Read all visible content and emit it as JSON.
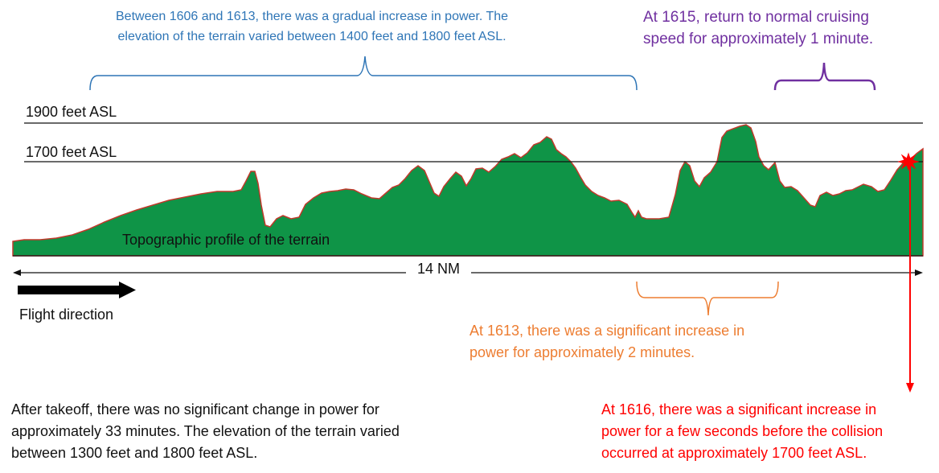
{
  "reference_lines": {
    "upper": {
      "label": "1900 feet ASL"
    },
    "lower": {
      "label": "1700 feet ASL"
    }
  },
  "terrain": {
    "label": "Topographic profile of the terrain",
    "fill_color": "#0f9447",
    "outline_color": "#c0392b"
  },
  "distance": {
    "label": "14 NM"
  },
  "flight_direction": {
    "label": "Flight direction"
  },
  "annotations": {
    "phase_1606_1613": {
      "lines": [
        "Between 1606 and 1613, there was a gradual increase in power. The",
        "elevation of the terrain varied between 1400 feet and 1800 feet ASL."
      ],
      "color": "#2e75b6"
    },
    "phase_1615": {
      "lines": [
        "At 1615, return to normal cruising",
        "speed for approximately 1 minute."
      ],
      "color": "#7030a0"
    },
    "phase_1613": {
      "lines": [
        "At 1613, there was a significant increase in",
        "power for approximately 2 minutes."
      ],
      "color": "#ed7d31"
    },
    "phase_takeoff": {
      "lines": [
        "After takeoff, there was no significant change in power for",
        "approximately 33 minutes. The elevation of the terrain varied",
        "between 1300 feet and 1800 feet ASL."
      ],
      "color": "#111111"
    },
    "phase_1616": {
      "lines": [
        "At 1616, there was a significant increase in",
        "power for a few seconds before the collision",
        "occurred at approximately 1700 feet ASL."
      ],
      "color": "#ff0000"
    }
  }
}
